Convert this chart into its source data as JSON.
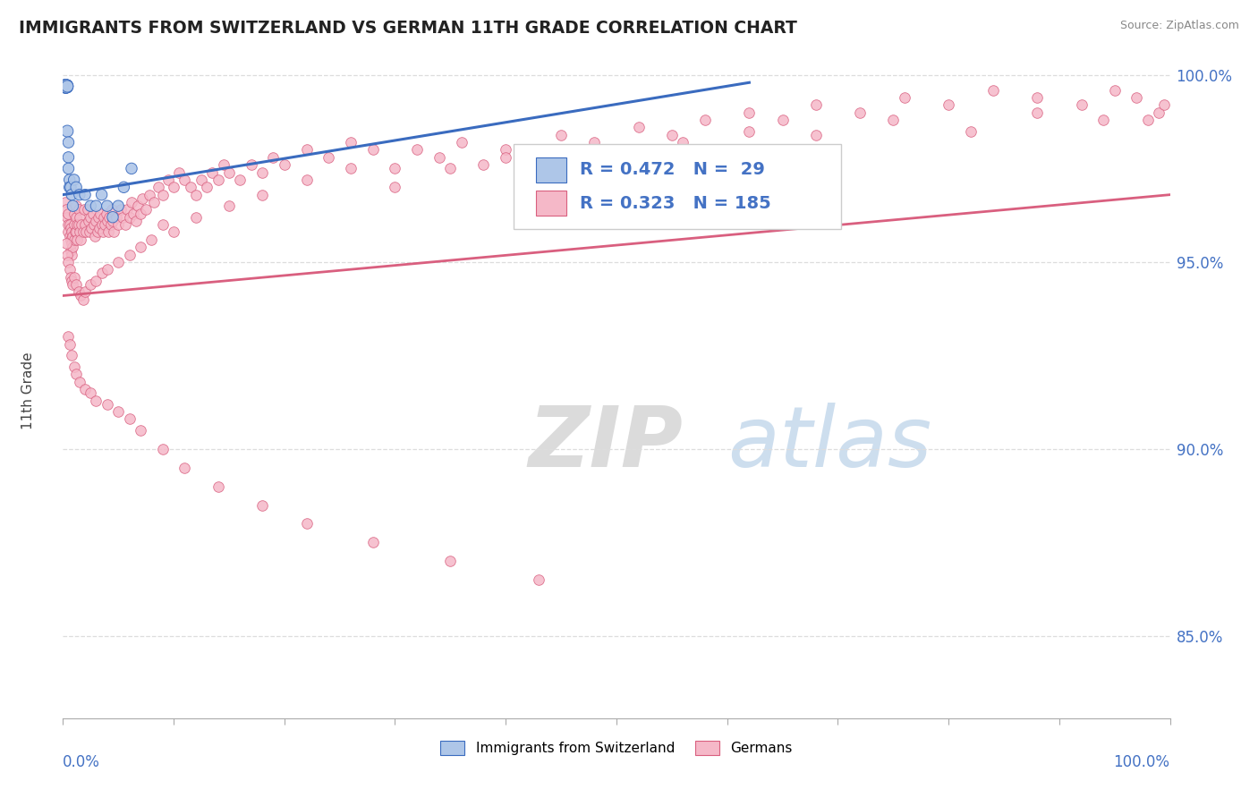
{
  "title": "IMMIGRANTS FROM SWITZERLAND VS GERMAN 11TH GRADE CORRELATION CHART",
  "source": "Source: ZipAtlas.com",
  "ylabel": "11th Grade",
  "legend_label1": "Immigrants from Switzerland",
  "legend_label2": "Germans",
  "r1": 0.472,
  "n1": 29,
  "r2": 0.323,
  "n2": 185,
  "blue_color": "#aec6e8",
  "blue_line_color": "#3a6bbf",
  "pink_color": "#f5b8c8",
  "pink_line_color": "#d95f7f",
  "blue_scatter_x": [
    0.001,
    0.002,
    0.002,
    0.003,
    0.003,
    0.003,
    0.003,
    0.004,
    0.004,
    0.005,
    0.005,
    0.005,
    0.006,
    0.006,
    0.007,
    0.008,
    0.009,
    0.01,
    0.012,
    0.015,
    0.02,
    0.025,
    0.03,
    0.035,
    0.04,
    0.045,
    0.05,
    0.055,
    0.062
  ],
  "blue_scatter_y": [
    0.997,
    0.997,
    0.997,
    0.997,
    0.997,
    0.997,
    0.997,
    0.997,
    0.985,
    0.982,
    0.978,
    0.975,
    0.972,
    0.97,
    0.97,
    0.968,
    0.965,
    0.972,
    0.97,
    0.968,
    0.968,
    0.965,
    0.965,
    0.968,
    0.965,
    0.962,
    0.965,
    0.97,
    0.975
  ],
  "blue_scatter_sizes": [
    60,
    120,
    120,
    120,
    120,
    120,
    120,
    90,
    90,
    80,
    80,
    80,
    80,
    80,
    80,
    80,
    80,
    80,
    80,
    80,
    80,
    80,
    80,
    80,
    80,
    80,
    80,
    80,
    80
  ],
  "pink_scatter_x": [
    0.002,
    0.003,
    0.004,
    0.005,
    0.005,
    0.005,
    0.006,
    0.006,
    0.007,
    0.007,
    0.007,
    0.008,
    0.008,
    0.008,
    0.009,
    0.009,
    0.01,
    0.01,
    0.01,
    0.011,
    0.012,
    0.012,
    0.012,
    0.013,
    0.013,
    0.014,
    0.014,
    0.015,
    0.015,
    0.016,
    0.017,
    0.018,
    0.019,
    0.02,
    0.021,
    0.022,
    0.023,
    0.024,
    0.025,
    0.026,
    0.027,
    0.028,
    0.029,
    0.03,
    0.031,
    0.032,
    0.033,
    0.034,
    0.035,
    0.036,
    0.037,
    0.038,
    0.039,
    0.04,
    0.041,
    0.042,
    0.043,
    0.044,
    0.045,
    0.046,
    0.048,
    0.05,
    0.052,
    0.054,
    0.056,
    0.058,
    0.06,
    0.062,
    0.064,
    0.066,
    0.068,
    0.07,
    0.072,
    0.075,
    0.078,
    0.082,
    0.086,
    0.09,
    0.095,
    0.1,
    0.105,
    0.11,
    0.115,
    0.12,
    0.125,
    0.13,
    0.135,
    0.14,
    0.145,
    0.15,
    0.16,
    0.17,
    0.18,
    0.19,
    0.2,
    0.22,
    0.24,
    0.26,
    0.28,
    0.3,
    0.32,
    0.34,
    0.36,
    0.38,
    0.4,
    0.42,
    0.45,
    0.48,
    0.52,
    0.55,
    0.58,
    0.62,
    0.65,
    0.68,
    0.72,
    0.76,
    0.8,
    0.84,
    0.88,
    0.92,
    0.95,
    0.97,
    0.98,
    0.99,
    0.995,
    0.003,
    0.004,
    0.005,
    0.006,
    0.007,
    0.008,
    0.009,
    0.01,
    0.012,
    0.014,
    0.016,
    0.018,
    0.02,
    0.025,
    0.03,
    0.035,
    0.04,
    0.05,
    0.06,
    0.07,
    0.08,
    0.09,
    0.1,
    0.12,
    0.15,
    0.18,
    0.22,
    0.26,
    0.3,
    0.35,
    0.4,
    0.45,
    0.5,
    0.56,
    0.62,
    0.68,
    0.75,
    0.82,
    0.88,
    0.94,
    0.005,
    0.006,
    0.008,
    0.01,
    0.012,
    0.015,
    0.02,
    0.025,
    0.03,
    0.04,
    0.05,
    0.06,
    0.07,
    0.09,
    0.11,
    0.14,
    0.18,
    0.22,
    0.28,
    0.35,
    0.43
  ],
  "pink_scatter_y": [
    0.966,
    0.964,
    0.962,
    0.96,
    0.963,
    0.958,
    0.957,
    0.96,
    0.956,
    0.959,
    0.953,
    0.955,
    0.958,
    0.952,
    0.954,
    0.957,
    0.96,
    0.956,
    0.963,
    0.958,
    0.962,
    0.958,
    0.965,
    0.96,
    0.956,
    0.96,
    0.964,
    0.958,
    0.962,
    0.956,
    0.96,
    0.958,
    0.964,
    0.96,
    0.958,
    0.964,
    0.961,
    0.958,
    0.962,
    0.959,
    0.963,
    0.96,
    0.957,
    0.961,
    0.958,
    0.962,
    0.959,
    0.963,
    0.96,
    0.958,
    0.962,
    0.96,
    0.963,
    0.961,
    0.958,
    0.962,
    0.96,
    0.964,
    0.961,
    0.958,
    0.962,
    0.96,
    0.964,
    0.962,
    0.96,
    0.964,
    0.962,
    0.966,
    0.963,
    0.961,
    0.965,
    0.963,
    0.967,
    0.964,
    0.968,
    0.966,
    0.97,
    0.968,
    0.972,
    0.97,
    0.974,
    0.972,
    0.97,
    0.968,
    0.972,
    0.97,
    0.974,
    0.972,
    0.976,
    0.974,
    0.972,
    0.976,
    0.974,
    0.978,
    0.976,
    0.98,
    0.978,
    0.982,
    0.98,
    0.975,
    0.98,
    0.978,
    0.982,
    0.976,
    0.98,
    0.978,
    0.984,
    0.982,
    0.986,
    0.984,
    0.988,
    0.99,
    0.988,
    0.992,
    0.99,
    0.994,
    0.992,
    0.996,
    0.994,
    0.992,
    0.996,
    0.994,
    0.988,
    0.99,
    0.992,
    0.955,
    0.952,
    0.95,
    0.948,
    0.946,
    0.945,
    0.944,
    0.946,
    0.944,
    0.942,
    0.941,
    0.94,
    0.942,
    0.944,
    0.945,
    0.947,
    0.948,
    0.95,
    0.952,
    0.954,
    0.956,
    0.96,
    0.958,
    0.962,
    0.965,
    0.968,
    0.972,
    0.975,
    0.97,
    0.975,
    0.978,
    0.98,
    0.975,
    0.982,
    0.985,
    0.984,
    0.988,
    0.985,
    0.99,
    0.988,
    0.93,
    0.928,
    0.925,
    0.922,
    0.92,
    0.918,
    0.916,
    0.915,
    0.913,
    0.912,
    0.91,
    0.908,
    0.905,
    0.9,
    0.895,
    0.89,
    0.885,
    0.88,
    0.875,
    0.87,
    0.865
  ],
  "blue_trend_x": [
    0.0,
    0.62
  ],
  "blue_trend_y": [
    0.968,
    0.998
  ],
  "pink_trend_x": [
    0.0,
    1.0
  ],
  "pink_trend_y": [
    0.941,
    0.968
  ],
  "xlim": [
    0.0,
    1.0
  ],
  "ylim": [
    0.828,
    1.003
  ],
  "watermark_zip": "ZIP",
  "watermark_atlas": "atlas",
  "background_color": "#ffffff",
  "title_color": "#222222",
  "axis_label_color": "#4472c4",
  "grid_color": "#dddddd"
}
